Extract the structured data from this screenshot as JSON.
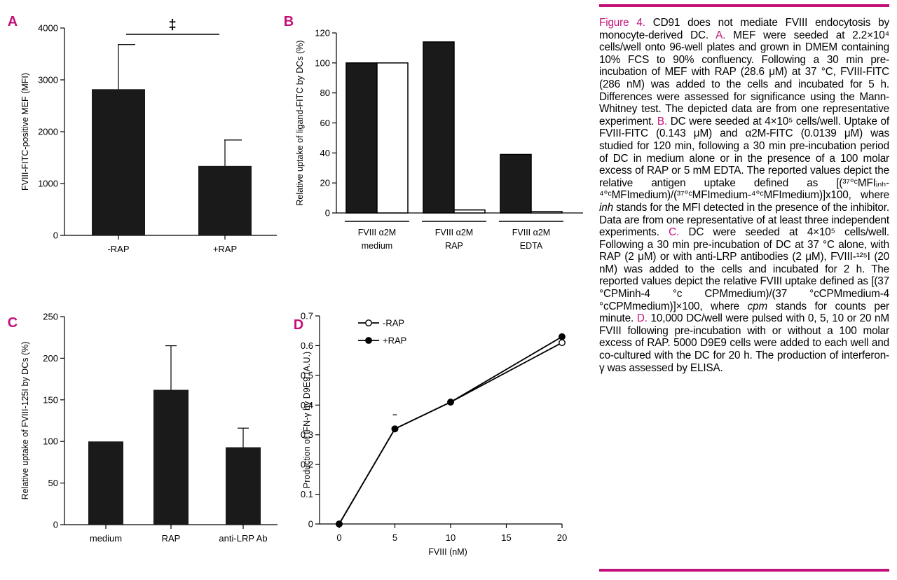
{
  "chart_data": [
    {
      "panel": "A",
      "type": "bar",
      "categories": [
        "-RAP",
        "+RAP"
      ],
      "values": [
        2820,
        1340
      ],
      "error_up": [
        3680,
        1840
      ],
      "ylabel": "FVIII-FITC-positive MEF (MFI)",
      "ylim": [
        0,
        4000
      ],
      "yticks": [
        0,
        1000,
        2000,
        3000,
        4000
      ],
      "significance": "‡"
    },
    {
      "panel": "B",
      "type": "bar",
      "ylabel": "Relative uptake of ligand-FITC by DCs (%)",
      "ylim": [
        0,
        120
      ],
      "yticks": [
        0,
        20,
        40,
        60,
        80,
        100,
        120
      ],
      "series": [
        {
          "name": "FVIII",
          "fill": "#1a1a1a",
          "values": [
            100,
            114,
            39
          ]
        },
        {
          "name": "α2M",
          "fill": "#ffffff",
          "values": [
            100,
            2,
            1
          ]
        }
      ],
      "groups": [
        {
          "pair_label": "FVIII α2M",
          "condition": "medium"
        },
        {
          "pair_label": "FVIII α2M",
          "condition": "RAP"
        },
        {
          "pair_label": "FVIII α2M",
          "condition": "EDTA"
        }
      ]
    },
    {
      "panel": "C",
      "type": "bar",
      "categories": [
        "medium",
        "RAP",
        "anti-LRP Ab"
      ],
      "values": [
        100,
        162,
        93
      ],
      "error_up": [
        null,
        215,
        116
      ],
      "ylabel": "Relative uptake of FVIII-125I by DCs (%)",
      "ylim": [
        0,
        250
      ],
      "yticks": [
        0,
        50,
        100,
        150,
        200,
        250
      ]
    },
    {
      "panel": "D",
      "type": "line",
      "xlabel": "FVIII (nM)",
      "ylabel": "Production of IFN-γ by D9E9 (A.U.)",
      "xlim": [
        0,
        20
      ],
      "ylim": [
        0,
        0.7
      ],
      "xticks": [
        0,
        5,
        10,
        15,
        20
      ],
      "yticks": [
        0,
        0.1,
        0.2,
        0.3,
        0.4,
        0.5,
        0.6,
        0.7
      ],
      "series": [
        {
          "name": "-RAP",
          "marker": "open",
          "x": [
            0,
            5,
            10,
            20
          ],
          "y": [
            0,
            0.32,
            0.41,
            0.61
          ]
        },
        {
          "name": "+RAP",
          "marker": "filled",
          "x": [
            0,
            5,
            10,
            20
          ],
          "y": [
            0,
            0.32,
            0.41,
            0.63
          ]
        }
      ]
    }
  ],
  "caption": {
    "figure_label": "Figure 4.",
    "title_text": "CD91 does not mediate FVIII endocytosis by monocyte-derived DC.",
    "panel_a_label": "A.",
    "panel_a_text": "MEF were seeded at 2.2×10⁴ cells/well onto 96-well plates and grown in DMEM containing 10% FCS to 90% confluency. Following a 30 min pre-incubation of MEF with RAP (28.6 μM) at 37 °C, FVIII-FITC (286 nM) was added to the cells and incubated for 5 h. Differences were assessed for significance using the Mann-Whitney test. The depicted data are from one representative experiment.",
    "panel_b_label": "B.",
    "panel_b_text": "DC were seeded at 4×10⁵ cells/well. Uptake of FVIII-FITC (0.143 μM) and α2M-FITC (0.0139 μM) was studied for 120 min, following a 30 min pre-incubation period of DC in medium alone or in the presence of a 100 molar excess of RAP or 5 mM EDTA. The reported values depict the relative antigen uptake defined as [(³⁷°ᶜMFIᵢₙₕ-⁴°ᶜMFImedium)/(³⁷°ᶜMFImedium-⁴°ᶜMFImedium)]x100, where",
    "panel_b_inh": "inh",
    "panel_b_text2": "stands for the MFI detected in the presence of the inhibitor. Data are from one representative of at least three independent experiments.",
    "panel_c_label": "C.",
    "panel_c_text": "DC were seeded at 4×10⁵ cells/well. Following a 30 min pre-incubation of DC at 37 °C alone, with RAP (2 μM) or with anti-LRP antibodies (2 μM), FVIII-¹²⁵I (20 nM) was added to the cells and incubated for 2 h. The reported values depict the relative FVIII uptake defined as [(37 °CPMinh-4 °c CPMmedium)/(37 °cCPMmedium-4 °cCPMmedium)]×100, where",
    "panel_c_cpm": "cpm",
    "panel_c_text2": "stands for counts per minute.",
    "panel_d_label": "D.",
    "panel_d_text": "10,000 DC/well were pulsed with 0, 5, 10 or 20 nM FVIII following pre-incubation with or without a 100 molar excess of RAP. 5000 D9E9 cells were added to each well and co-cultured with the DC for 20 h. The production of interferon-γ was assessed by ELISA."
  },
  "colors": {
    "panel_label": "#c2127a",
    "bar_fill": "#1a1a1a",
    "rule": "#c2127a"
  }
}
